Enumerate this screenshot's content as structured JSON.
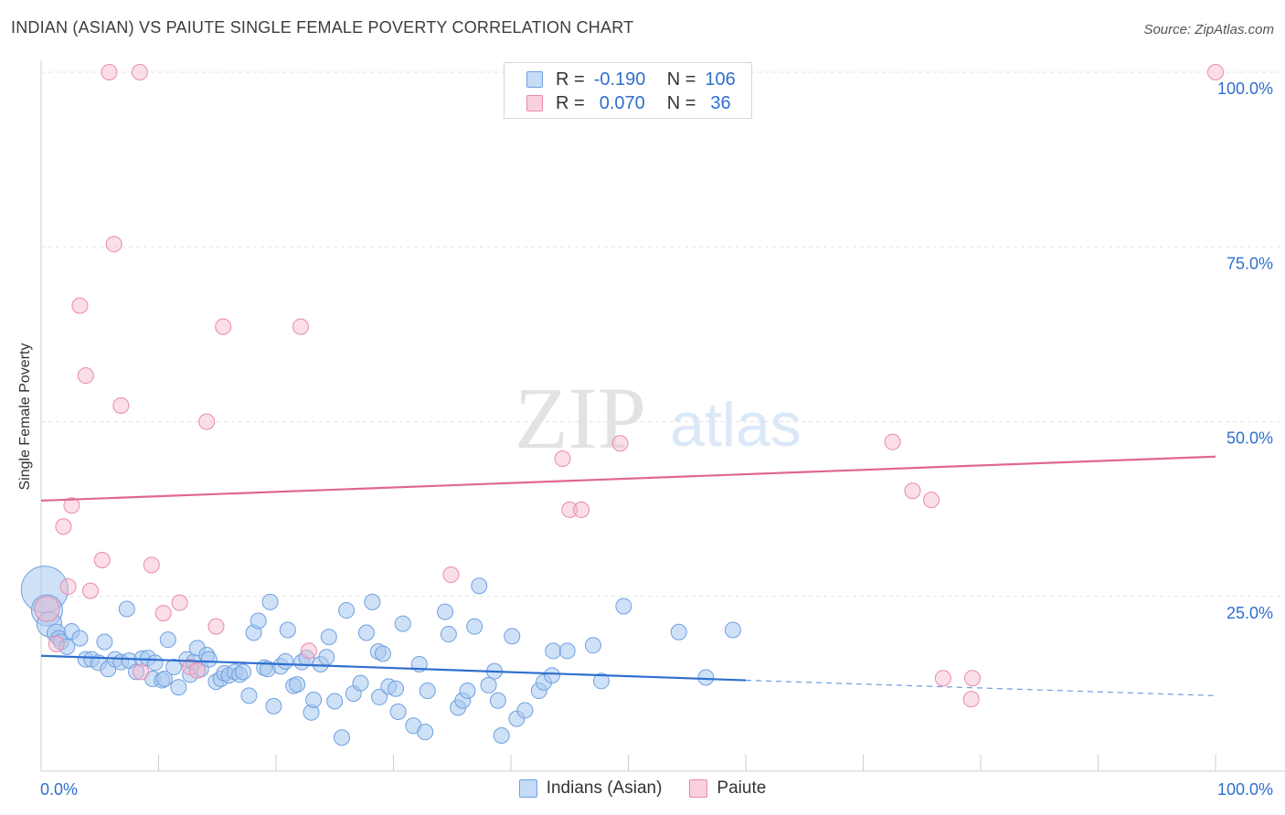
{
  "title": "INDIAN (ASIAN) VS PAIUTE SINGLE FEMALE POVERTY CORRELATION CHART",
  "source": "Source: ZipAtlas.com",
  "watermark": {
    "zip": "ZIP",
    "atlas": "atlas"
  },
  "legend_top": {
    "rows": [
      {
        "r_label": "R =",
        "r_value": "-0.190",
        "n_label": "N =",
        "n_value": "106",
        "color": "#a8c8f0"
      },
      {
        "r_label": "R =",
        "r_value": "0.070",
        "n_label": "N =",
        "n_value": "36",
        "color": "#f5b8cb"
      }
    ]
  },
  "chart_data": {
    "type": "scatter",
    "title": "INDIAN (ASIAN) VS PAIUTE SINGLE FEMALE POVERTY CORRELATION CHART",
    "xlabel": "",
    "ylabel": "Single Female Poverty",
    "xlim": [
      0,
      100
    ],
    "ylim": [
      0,
      100
    ],
    "x_tick_labels": [
      "0.0%",
      "100.0%"
    ],
    "y_tick_labels": [
      "25.0%",
      "50.0%",
      "75.0%",
      "100.0%"
    ],
    "y_ticks": [
      25,
      50,
      75,
      100
    ],
    "grid": true,
    "legend_position": "bottom",
    "series": [
      {
        "name": "Indians (Asian)",
        "color": "#a8c8f0",
        "stroke": "#6fa0e0",
        "line_color": "#2f6fce",
        "trend": {
          "x0": 0,
          "y0": 16.5,
          "x1": 60,
          "y1": 13.0,
          "dash_to": 100,
          "dash_y": 10.8
        },
        "points": [
          [
            0.3,
            26,
            3
          ],
          [
            0.5,
            23,
            2
          ],
          [
            0.7,
            21,
            1.6
          ],
          [
            1.3,
            19.7,
            1.2
          ],
          [
            2.6,
            20,
            1
          ],
          [
            1.5,
            19,
            1
          ],
          [
            1.7,
            18.5,
            1
          ],
          [
            2.2,
            17.8,
            1
          ],
          [
            3.3,
            19,
            1
          ],
          [
            3.8,
            16,
            1
          ],
          [
            4.3,
            16,
            1
          ],
          [
            4.9,
            15.5,
            1
          ],
          [
            5.4,
            18.5,
            1
          ],
          [
            5.7,
            14.6,
            1
          ],
          [
            6.3,
            16,
            1
          ],
          [
            6.8,
            15.6,
            1
          ],
          [
            7.3,
            23.2,
            1
          ],
          [
            7.5,
            15.8,
            1
          ],
          [
            8.1,
            14.2,
            1
          ],
          [
            8.6,
            16.1,
            1
          ],
          [
            9.1,
            16.2,
            1
          ],
          [
            9.5,
            13.2,
            1
          ],
          [
            9.7,
            15.5,
            1
          ],
          [
            10.3,
            13,
            1
          ],
          [
            10.5,
            13.2,
            1
          ],
          [
            10.8,
            18.8,
            1
          ],
          [
            11.3,
            14.9,
            1
          ],
          [
            11.7,
            12,
            1
          ],
          [
            12.4,
            16,
            1
          ],
          [
            12.7,
            13.8,
            1
          ],
          [
            13,
            15.6,
            1
          ],
          [
            13.3,
            17.6,
            1
          ],
          [
            13.6,
            14.6,
            1
          ],
          [
            14.1,
            16.6,
            1
          ],
          [
            14.3,
            16,
            1
          ],
          [
            14.9,
            12.8,
            1
          ],
          [
            15.3,
            13.2,
            1
          ],
          [
            15.6,
            14,
            1
          ],
          [
            16,
            13.7,
            1
          ],
          [
            16.5,
            14.2,
            1
          ],
          [
            16.9,
            13.8,
            1
          ],
          [
            17.2,
            14.2,
            1
          ],
          [
            17.7,
            10.8,
            1
          ],
          [
            18.1,
            19.8,
            1
          ],
          [
            18.5,
            21.5,
            1
          ],
          [
            19,
            14.8,
            1
          ],
          [
            19.3,
            14.6,
            1
          ],
          [
            19.5,
            24.2,
            1
          ],
          [
            19.8,
            9.3,
            1
          ],
          [
            20.4,
            15,
            1
          ],
          [
            20.8,
            15.7,
            1
          ],
          [
            21,
            20.2,
            1
          ],
          [
            21.5,
            12.2,
            1
          ],
          [
            21.8,
            12.4,
            1
          ],
          [
            22.2,
            15.6,
            1
          ],
          [
            22.6,
            16.2,
            1
          ],
          [
            23,
            8.4,
            1
          ],
          [
            23.2,
            10.2,
            1
          ],
          [
            23.8,
            15.3,
            1
          ],
          [
            24.3,
            16.3,
            1
          ],
          [
            24.5,
            19.2,
            1
          ],
          [
            25,
            10,
            1
          ],
          [
            25.6,
            4.8,
            1
          ],
          [
            26,
            23,
            1
          ],
          [
            26.6,
            11.1,
            1
          ],
          [
            27.2,
            12.6,
            1
          ],
          [
            27.7,
            19.8,
            1
          ],
          [
            28.2,
            24.2,
            1
          ],
          [
            28.7,
            17.1,
            1
          ],
          [
            29.1,
            16.8,
            1
          ],
          [
            28.8,
            10.6,
            1
          ],
          [
            29.6,
            12.1,
            1
          ],
          [
            30.2,
            11.8,
            1
          ],
          [
            30.4,
            8.5,
            1
          ],
          [
            30.8,
            21.1,
            1
          ],
          [
            31.7,
            6.5,
            1
          ],
          [
            32.2,
            15.3,
            1
          ],
          [
            32.7,
            5.6,
            1
          ],
          [
            32.9,
            11.5,
            1
          ],
          [
            34.4,
            22.8,
            1
          ],
          [
            34.7,
            19.6,
            1
          ],
          [
            35.5,
            9.1,
            1
          ],
          [
            35.9,
            10.1,
            1
          ],
          [
            36.3,
            11.5,
            1
          ],
          [
            36.9,
            20.7,
            1
          ],
          [
            37.3,
            26.5,
            1
          ],
          [
            38.1,
            12.3,
            1
          ],
          [
            38.6,
            14.3,
            1
          ],
          [
            38.9,
            10.1,
            1
          ],
          [
            39.2,
            5.1,
            1
          ],
          [
            40.1,
            19.3,
            1
          ],
          [
            40.5,
            7.5,
            1
          ],
          [
            41.2,
            8.7,
            1
          ],
          [
            42.4,
            11.5,
            1
          ],
          [
            42.8,
            12.7,
            1
          ],
          [
            43.5,
            13.7,
            1
          ],
          [
            43.6,
            17.2,
            1
          ],
          [
            44.8,
            17.2,
            1
          ],
          [
            47,
            18,
            1
          ],
          [
            47.7,
            12.9,
            1
          ],
          [
            49.6,
            23.6,
            1
          ],
          [
            54.3,
            19.9,
            1
          ],
          [
            56.6,
            13.4,
            1
          ],
          [
            58.9,
            20.2,
            1
          ]
        ]
      },
      {
        "name": "Paiute",
        "color": "#f5b8cb",
        "stroke": "#e98aaa",
        "line_color": "#e0678f",
        "trend": {
          "x0": 0,
          "y0": 38.7,
          "x1": 100,
          "y1": 45.0
        },
        "points": [
          [
            0.5,
            23.2,
            1.6
          ],
          [
            1.3,
            18.2,
            1
          ],
          [
            1.9,
            35,
            1
          ],
          [
            2.3,
            26.4,
            1
          ],
          [
            2.6,
            38,
            1
          ],
          [
            3.3,
            66.6,
            1
          ],
          [
            3.8,
            56.6,
            1
          ],
          [
            4.2,
            25.8,
            1
          ],
          [
            5.2,
            30.2,
            1
          ],
          [
            5.8,
            100,
            1
          ],
          [
            6.2,
            75.4,
            1
          ],
          [
            6.8,
            52.3,
            1
          ],
          [
            8.4,
            100,
            1
          ],
          [
            8.5,
            14.2,
            1
          ],
          [
            9.4,
            29.5,
            1
          ],
          [
            10.4,
            22.6,
            1
          ],
          [
            11.8,
            24.1,
            1
          ],
          [
            12.7,
            14.9,
            1
          ],
          [
            13.3,
            14.4,
            1
          ],
          [
            14.1,
            50.0,
            1
          ],
          [
            14.9,
            20.7,
            1
          ],
          [
            15.5,
            63.6,
            1
          ],
          [
            22.1,
            63.6,
            1
          ],
          [
            22.8,
            17.2,
            1
          ],
          [
            34.9,
            28.1,
            1
          ],
          [
            44.4,
            44.7,
            1
          ],
          [
            45,
            37.4,
            1
          ],
          [
            46,
            37.4,
            1
          ],
          [
            49.3,
            46.9,
            1
          ],
          [
            72.5,
            47.1,
            1
          ],
          [
            74.2,
            40.1,
            1
          ],
          [
            75.8,
            38.8,
            1
          ],
          [
            76.8,
            13.3,
            1
          ],
          [
            79.3,
            13.3,
            1
          ],
          [
            79.2,
            10.3,
            1
          ],
          [
            100,
            100,
            1
          ]
        ]
      }
    ]
  },
  "bottom_legend": [
    {
      "label": "Indians (Asian)",
      "color": "#a8c8f0"
    },
    {
      "label": "Paiute",
      "color": "#f5b8cb"
    }
  ]
}
